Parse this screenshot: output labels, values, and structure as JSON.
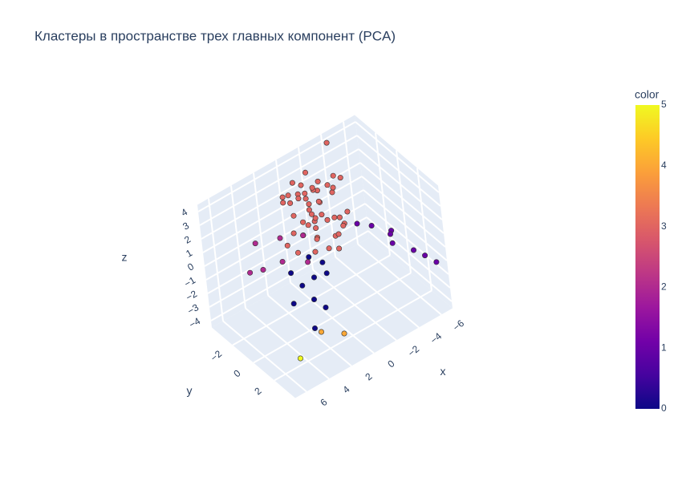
{
  "chart_data": {
    "type": "scatter3d",
    "title": "Кластеры в пространстве трех главных компонент (PCA)",
    "x_label": "x",
    "y_label": "y",
    "z_label": "z",
    "colorbar_title": "color",
    "x": [
      -1.2,
      -0.5,
      0.3,
      -2.1,
      -1.8,
      0.8,
      -0.2,
      -1.5,
      -2.6,
      0.1,
      -0.9,
      -1.1,
      0.5,
      -2.3,
      -0.6,
      -1.7,
      0.9,
      -0.3,
      -1.4,
      -2.8,
      0.2,
      -1.0,
      -0.1,
      -2.0,
      1.2,
      -0.7,
      -1.9,
      0.6,
      -1.3,
      -2.4,
      -0.4,
      0.0,
      -1.6,
      -0.8,
      -2.2,
      1.5,
      -3.0,
      -0.5,
      0.4,
      -1.2,
      -2.5,
      1.0,
      -0.9,
      -3.2,
      2.0,
      -1.1,
      0.7,
      -0.3,
      -2.7,
      -4.0,
      1.5,
      2.5,
      3.0,
      0.8,
      2.0,
      4.0,
      1.2,
      3.5,
      2.8,
      0.5,
      -4.5,
      -5.5,
      -3.8,
      -6.0,
      -5.0,
      -3.0,
      -4.2,
      -6.5,
      2.0,
      4.5,
      1.0,
      3.2,
      5.0,
      1.8,
      3.8,
      3.0,
      1.5,
      5.0
    ],
    "y": [
      -1.5,
      -2.0,
      -1.0,
      -2.5,
      -0.8,
      -1.8,
      -2.8,
      -1.2,
      -1.6,
      -0.5,
      -2.2,
      -1.9,
      -2.4,
      -0.6,
      -1.3,
      -2.6,
      -0.9,
      -1.7,
      -0.4,
      -2.0,
      -2.9,
      -1.1,
      -0.7,
      -1.4,
      -1.5,
      -3.0,
      -2.3,
      -0.2,
      -2.7,
      -1.0,
      -1.6,
      -2.1,
      -0.3,
      -1.9,
      -2.8,
      -0.9,
      -1.2,
      -0.1,
      -1.4,
      -3.2,
      -0.7,
      -2.5,
      -1.8,
      -2.2,
      -1.3,
      0.2,
      -2.9,
      -1.0,
      -0.5,
      -3.5,
      0.5,
      1.5,
      0.0,
      1.0,
      2.0,
      1.2,
      -0.2,
      2.5,
      0.8,
      0.3,
      1.5,
      2.5,
      0.5,
      3.0,
      1.0,
      0.0,
      2.0,
      3.5,
      -2.0,
      -1.0,
      -0.8,
      -0.5,
      -1.8,
      0.4,
      -2.4,
      2.5,
      3.0,
      2.5
    ],
    "z": [
      2.5,
      3.1,
      1.8,
      2.9,
      1.5,
      2.2,
      3.5,
      1.2,
      2.8,
      1.0,
      2.0,
      3.3,
      2.6,
      0.8,
      1.7,
      2.4,
      1.4,
      3.0,
      0.6,
      2.1,
      2.7,
      1.9,
      0.9,
      3.4,
      1.3,
      2.3,
      1.6,
      0.5,
      3.8,
      1.1,
      2.2,
      2.9,
      0.7,
      1.5,
      2.0,
      0.4,
      3.6,
      0.3,
      1.8,
      2.6,
      0.8,
      3.2,
      1.0,
      3.0,
      0.9,
      0.2,
      2.4,
      1.3,
      1.7,
      4.2,
      -0.5,
      -1.0,
      0.2,
      -0.2,
      -1.5,
      -0.8,
      0.4,
      -2.0,
      -0.3,
      0.0,
      0.5,
      -0.5,
      0.8,
      -0.8,
      0.2,
      1.0,
      0.3,
      -1.2,
      1.0,
      0.5,
      1.5,
      0.8,
      0.0,
      0.7,
      1.2,
      -2.5,
      -3.0,
      -3.5
    ],
    "color": [
      3,
      3,
      3,
      3,
      3,
      3,
      3,
      3,
      3,
      3,
      3,
      3,
      3,
      3,
      3,
      3,
      3,
      3,
      3,
      3,
      3,
      3,
      3,
      3,
      3,
      3,
      3,
      3,
      3,
      3,
      3,
      3,
      3,
      3,
      3,
      3,
      3,
      3,
      3,
      3,
      3,
      3,
      3,
      3,
      3,
      3,
      3,
      3,
      3,
      3,
      0,
      0,
      0,
      0,
      0,
      0,
      0,
      0,
      0,
      0,
      1,
      1,
      1,
      1,
      1,
      1,
      1,
      1,
      2,
      2,
      2,
      2,
      2,
      2,
      2,
      4,
      4,
      5
    ],
    "colorscale": [
      "#0d0887",
      "#46039f",
      "#7201a8",
      "#9c179e",
      "#bd3786",
      "#d8576b",
      "#ed7953",
      "#fb9f3a",
      "#fdca26",
      "#f0f921"
    ],
    "xlim": [
      -7,
      7
    ],
    "ylim": [
      -4,
      4
    ],
    "zlim": [
      -4.5,
      4.5
    ],
    "clim": [
      0,
      5
    ],
    "xticks": [
      {
        "value": -6,
        "label": "−6"
      },
      {
        "value": -4,
        "label": "−4"
      },
      {
        "value": -2,
        "label": "−2"
      },
      0,
      2,
      4,
      6
    ],
    "yticks": [
      {
        "value": -2,
        "label": "−2"
      },
      0,
      2
    ],
    "zticks": [
      {
        "value": -4,
        "label": "−4"
      },
      {
        "value": -3,
        "label": "−3"
      },
      {
        "value": -2,
        "label": "−2"
      },
      {
        "value": -1,
        "label": "−1"
      },
      0,
      1,
      2,
      3,
      4
    ],
    "cticks": [
      0,
      1,
      2,
      3,
      4,
      5
    ],
    "grid": true
  }
}
